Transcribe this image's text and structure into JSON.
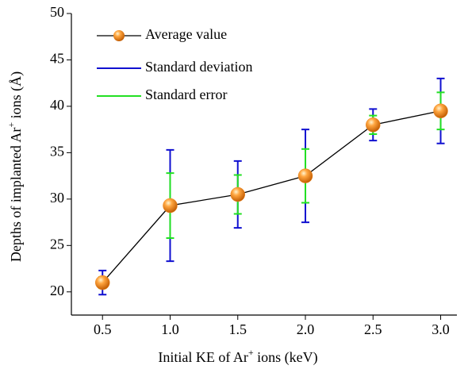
{
  "chart_data": {
    "type": "errorbar",
    "x_label": [
      "Initial KE of Ar",
      "+",
      " ions (keV)"
    ],
    "y_label": [
      "Depths of implanted Ar",
      "+",
      " ions (Å)"
    ],
    "x": [
      0.5,
      1,
      1.5,
      2,
      2.5,
      3
    ],
    "series": [
      {
        "name": "Average value",
        "color": "#f08a24",
        "values": [
          21.0,
          29.3,
          30.5,
          32.5,
          38.0,
          39.5
        ]
      },
      {
        "name": "Standard deviation",
        "color": "#1010d0",
        "values": [
          1.3,
          6.0,
          3.6,
          5.0,
          1.7,
          3.5
        ]
      },
      {
        "name": "Standard error",
        "color": "#22e022",
        "values": [
          0.6,
          3.5,
          2.1,
          2.9,
          1.0,
          2.0
        ]
      }
    ],
    "xlim": [
      0.27,
      3.12
    ],
    "xticks": [
      0.5,
      {
        "value": 1,
        "label": "1.0"
      },
      1.5,
      {
        "value": 2,
        "label": "2.0"
      },
      2.5,
      {
        "value": 3,
        "label": "3.0"
      }
    ],
    "ylim": [
      17.5,
      50
    ],
    "yticks": [
      20,
      25,
      30,
      35,
      40,
      45,
      50
    ],
    "legend": "upper-left"
  }
}
